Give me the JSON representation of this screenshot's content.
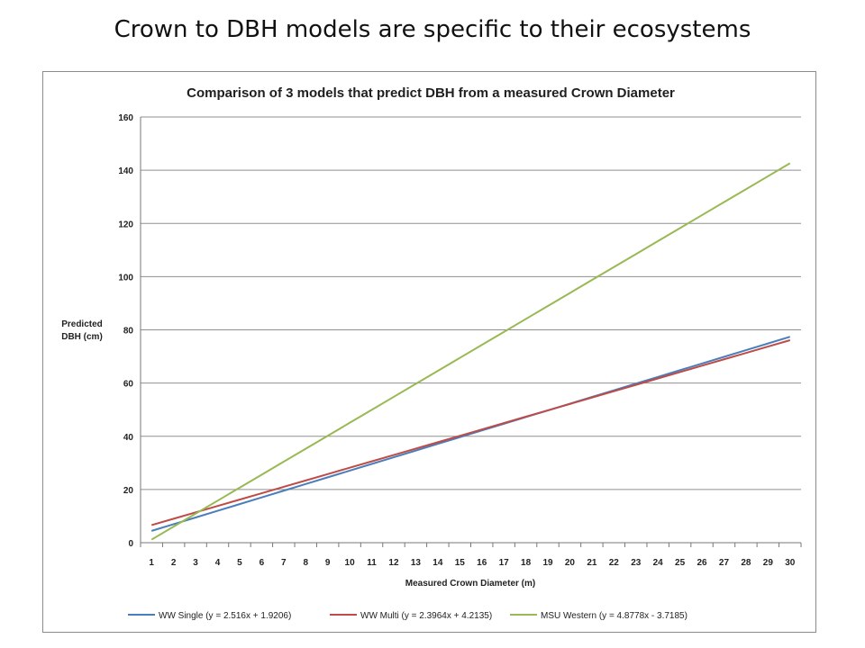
{
  "slide": {
    "title": "Crown to DBH models are specific to their ecosystems"
  },
  "chart_data": {
    "type": "line",
    "title": "Comparison of 3 models that predict DBH from a measured Crown Diameter",
    "xlabel": "Measured Crown Diameter (m)",
    "ylabel": [
      "Predicted",
      "DBH (cm)"
    ],
    "x": [
      1,
      2,
      3,
      4,
      5,
      6,
      7,
      8,
      9,
      10,
      11,
      12,
      13,
      14,
      15,
      16,
      17,
      18,
      19,
      20,
      21,
      22,
      23,
      24,
      25,
      26,
      27,
      28,
      29,
      30
    ],
    "ylim": [
      0,
      160
    ],
    "yticks": [
      0,
      20,
      40,
      60,
      80,
      100,
      120,
      140,
      160
    ],
    "grid": true,
    "legend_position": "bottom",
    "series": [
      {
        "name": "WW Single (y = 2.516x + 1.9206)",
        "slope": 2.516,
        "intercept": 1.9206,
        "color": "#4a7ebb",
        "values": [
          4.44,
          6.95,
          9.47,
          11.98,
          14.5,
          17.02,
          19.53,
          22.05,
          24.56,
          27.08,
          29.6,
          32.11,
          34.63,
          37.14,
          39.66,
          42.18,
          44.69,
          47.21,
          49.72,
          52.24,
          54.76,
          57.27,
          59.79,
          62.31,
          64.82,
          67.34,
          69.85,
          72.37,
          74.88,
          77.4
        ]
      },
      {
        "name": "WW Multi (y = 2.3964x + 4.2135)",
        "slope": 2.3964,
        "intercept": 4.2135,
        "color": "#be4b48",
        "values": [
          6.61,
          9.01,
          11.4,
          13.8,
          16.2,
          18.59,
          20.99,
          23.38,
          25.78,
          28.18,
          30.57,
          32.97,
          35.37,
          37.76,
          40.16,
          42.56,
          44.95,
          47.35,
          49.75,
          52.14,
          54.54,
          56.93,
          59.33,
          61.73,
          64.12,
          66.52,
          68.92,
          71.31,
          73.71,
          76.11
        ]
      },
      {
        "name": "MSU Western   (y = 4.8778x - 3.7185)",
        "slope": 4.8778,
        "intercept": -3.7185,
        "color": "#98b954",
        "values": [
          1.16,
          6.04,
          10.91,
          15.79,
          20.67,
          25.55,
          30.43,
          35.3,
          40.18,
          45.06,
          49.94,
          54.82,
          59.69,
          64.57,
          69.45,
          74.33,
          79.21,
          84.08,
          88.96,
          93.84,
          98.72,
          103.6,
          108.47,
          113.35,
          118.23,
          123.11,
          127.99,
          132.86,
          137.74,
          142.62
        ]
      }
    ]
  }
}
